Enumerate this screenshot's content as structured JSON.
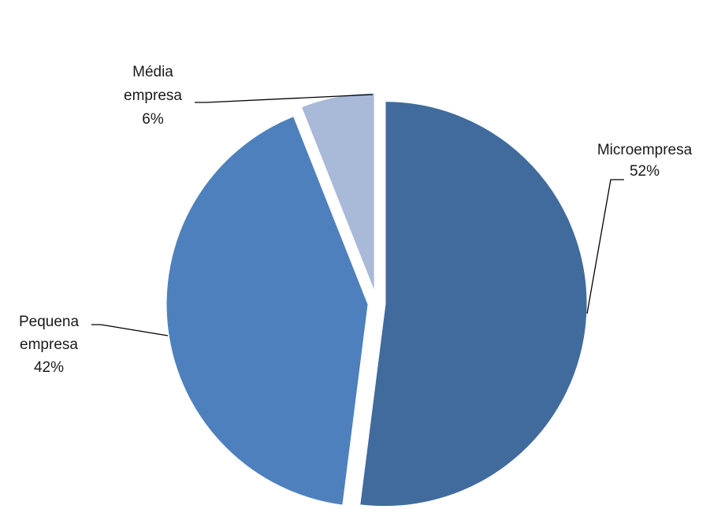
{
  "chart_data": {
    "type": "pie",
    "title": "",
    "slices": [
      {
        "name": "Microempresa",
        "value": 52,
        "label": "52%",
        "color": "#416b9c"
      },
      {
        "name": "Pequena empresa",
        "value": 42,
        "label": "42%",
        "color": "#4e80bd"
      },
      {
        "name": "Média empresa",
        "value": 6,
        "label": "6%",
        "color": "#a9b9d8"
      }
    ],
    "exploded": true,
    "legend": "none"
  }
}
